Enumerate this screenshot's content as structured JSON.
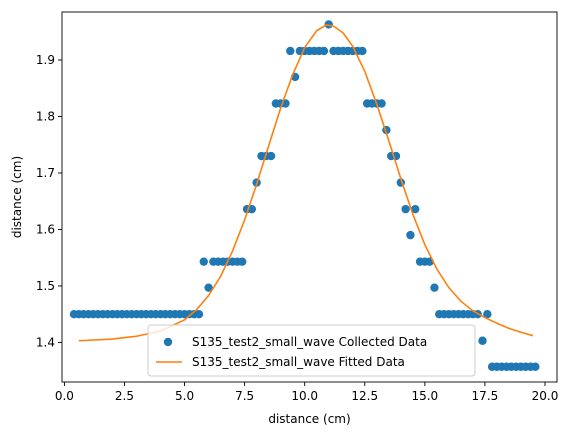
{
  "chart_data": {
    "type": "scatter",
    "xlabel": "distance (cm)",
    "ylabel": "distance (cm)",
    "xlim": [
      -0.1,
      20.5
    ],
    "ylim": [
      1.33,
      1.985
    ],
    "xticks": [
      0.0,
      2.5,
      5.0,
      7.5,
      10.0,
      12.5,
      15.0,
      17.5,
      20.0
    ],
    "xtick_labels": [
      "0.0",
      "2.5",
      "5.0",
      "7.5",
      "10.0",
      "12.5",
      "15.0",
      "17.5",
      "20.0"
    ],
    "yticks": [
      1.4,
      1.5,
      1.6,
      1.7,
      1.8,
      1.9
    ],
    "ytick_labels": [
      "1.4",
      "1.5",
      "1.6",
      "1.7",
      "1.8",
      "1.9"
    ],
    "grid": false,
    "legend_position": "lower-center",
    "series": [
      {
        "name": "S135_test2_small_wave Collected Data",
        "kind": "scatter",
        "color": "#1f77b4",
        "points": [
          [
            0.4,
            1.45
          ],
          [
            0.6,
            1.45
          ],
          [
            0.8,
            1.45
          ],
          [
            1.0,
            1.45
          ],
          [
            1.2,
            1.45
          ],
          [
            1.4,
            1.45
          ],
          [
            1.6,
            1.45
          ],
          [
            1.8,
            1.45
          ],
          [
            2.0,
            1.45
          ],
          [
            2.2,
            1.45
          ],
          [
            2.4,
            1.45
          ],
          [
            2.6,
            1.45
          ],
          [
            2.8,
            1.45
          ],
          [
            3.0,
            1.45
          ],
          [
            3.2,
            1.45
          ],
          [
            3.4,
            1.45
          ],
          [
            3.6,
            1.45
          ],
          [
            3.8,
            1.45
          ],
          [
            4.0,
            1.45
          ],
          [
            4.2,
            1.45
          ],
          [
            4.4,
            1.45
          ],
          [
            4.6,
            1.45
          ],
          [
            4.8,
            1.45
          ],
          [
            5.0,
            1.45
          ],
          [
            5.2,
            1.45
          ],
          [
            5.4,
            1.45
          ],
          [
            5.6,
            1.45
          ],
          [
            5.8,
            1.543
          ],
          [
            6.0,
            1.497
          ],
          [
            6.2,
            1.543
          ],
          [
            6.4,
            1.543
          ],
          [
            6.6,
            1.543
          ],
          [
            6.8,
            1.543
          ],
          [
            7.0,
            1.543
          ],
          [
            7.2,
            1.543
          ],
          [
            7.4,
            1.543
          ],
          [
            7.6,
            1.636
          ],
          [
            7.8,
            1.636
          ],
          [
            8.0,
            1.683
          ],
          [
            8.2,
            1.73
          ],
          [
            8.4,
            1.73
          ],
          [
            8.6,
            1.73
          ],
          [
            8.8,
            1.823
          ],
          [
            9.0,
            1.823
          ],
          [
            9.2,
            1.823
          ],
          [
            9.4,
            1.916
          ],
          [
            9.6,
            1.87
          ],
          [
            9.8,
            1.916
          ],
          [
            10.0,
            1.916
          ],
          [
            10.2,
            1.916
          ],
          [
            10.4,
            1.916
          ],
          [
            10.6,
            1.916
          ],
          [
            10.8,
            1.916
          ],
          [
            11.0,
            1.963
          ],
          [
            11.2,
            1.916
          ],
          [
            11.4,
            1.916
          ],
          [
            11.6,
            1.916
          ],
          [
            11.8,
            1.916
          ],
          [
            12.0,
            1.916
          ],
          [
            12.2,
            1.916
          ],
          [
            12.4,
            1.916
          ],
          [
            12.6,
            1.823
          ],
          [
            12.8,
            1.823
          ],
          [
            13.0,
            1.823
          ],
          [
            13.2,
            1.823
          ],
          [
            13.4,
            1.776
          ],
          [
            13.6,
            1.73
          ],
          [
            13.8,
            1.73
          ],
          [
            14.0,
            1.683
          ],
          [
            14.2,
            1.636
          ],
          [
            14.4,
            1.59
          ],
          [
            14.6,
            1.636
          ],
          [
            14.8,
            1.543
          ],
          [
            15.0,
            1.543
          ],
          [
            15.2,
            1.543
          ],
          [
            15.4,
            1.497
          ],
          [
            15.6,
            1.45
          ],
          [
            15.8,
            1.45
          ],
          [
            16.0,
            1.45
          ],
          [
            16.2,
            1.45
          ],
          [
            16.4,
            1.45
          ],
          [
            16.6,
            1.45
          ],
          [
            16.8,
            1.45
          ],
          [
            17.0,
            1.45
          ],
          [
            17.2,
            1.45
          ],
          [
            17.4,
            1.403
          ],
          [
            17.6,
            1.45
          ],
          [
            17.8,
            1.357
          ],
          [
            18.0,
            1.357
          ],
          [
            18.2,
            1.357
          ],
          [
            18.4,
            1.357
          ],
          [
            18.6,
            1.357
          ],
          [
            18.8,
            1.357
          ],
          [
            19.0,
            1.357
          ],
          [
            19.2,
            1.357
          ],
          [
            19.4,
            1.357
          ],
          [
            19.6,
            1.357
          ]
        ]
      },
      {
        "name": "S135_test2_small_wave Fitted Data",
        "kind": "line",
        "color": "#ff7f0e",
        "points": [
          [
            0.6,
            1.403
          ],
          [
            2.0,
            1.406
          ],
          [
            3.0,
            1.411
          ],
          [
            4.0,
            1.42
          ],
          [
            5.0,
            1.44
          ],
          [
            5.5,
            1.458
          ],
          [
            6.0,
            1.483
          ],
          [
            6.5,
            1.517
          ],
          [
            7.0,
            1.562
          ],
          [
            7.5,
            1.617
          ],
          [
            8.0,
            1.68
          ],
          [
            8.5,
            1.748
          ],
          [
            9.0,
            1.815
          ],
          [
            9.5,
            1.874
          ],
          [
            10.0,
            1.922
          ],
          [
            10.5,
            1.952
          ],
          [
            10.9,
            1.962
          ],
          [
            11.2,
            1.96
          ],
          [
            11.6,
            1.948
          ],
          [
            12.0,
            1.924
          ],
          [
            12.5,
            1.88
          ],
          [
            13.0,
            1.822
          ],
          [
            13.5,
            1.757
          ],
          [
            14.0,
            1.69
          ],
          [
            14.5,
            1.627
          ],
          [
            15.0,
            1.573
          ],
          [
            15.5,
            1.53
          ],
          [
            16.0,
            1.497
          ],
          [
            16.5,
            1.473
          ],
          [
            17.0,
            1.456
          ],
          [
            17.5,
            1.444
          ],
          [
            18.0,
            1.434
          ],
          [
            18.5,
            1.425
          ],
          [
            19.0,
            1.418
          ],
          [
            19.5,
            1.412
          ]
        ]
      }
    ]
  }
}
